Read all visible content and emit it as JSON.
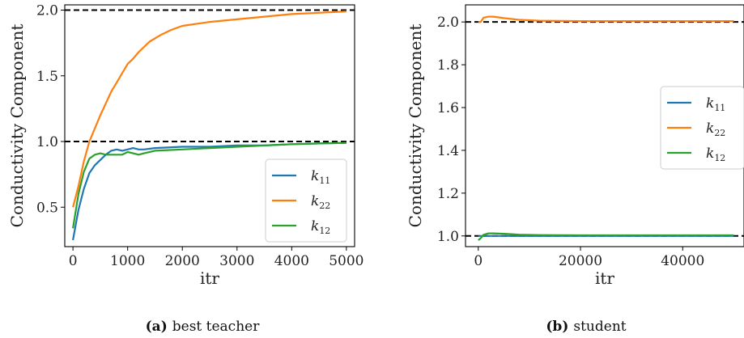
{
  "colors": {
    "k11": "#1f77b4",
    "k22": "#ff7f0e",
    "k12": "#2ca02c",
    "ref": "#000000"
  },
  "chart_data": [
    {
      "type": "line",
      "caption_tag": "(a)",
      "caption": "best teacher",
      "xlabel": "itr",
      "ylabel": "Conductivity Component",
      "xlim": [
        -150,
        5150
      ],
      "ylim": [
        0.2,
        2.04
      ],
      "xticks": [
        0,
        1000,
        2000,
        3000,
        4000,
        5000
      ],
      "xtick_labels": [
        "0",
        "1000",
        "2000",
        "3000",
        "4000",
        "5000"
      ],
      "yticks": [
        0.5,
        1.0,
        1.5,
        2.0
      ],
      "ytick_labels": [
        "0.5",
        "1.0",
        "1.5",
        "2.0"
      ],
      "reference_lines": [
        1.0,
        2.0
      ],
      "legend": {
        "position": "lower-right",
        "entries": [
          {
            "sym": "k",
            "sub": "11"
          },
          {
            "sym": "k",
            "sub": "22"
          },
          {
            "sym": "k",
            "sub": "12"
          }
        ]
      },
      "series": [
        {
          "name": "k11",
          "x": [
            0,
            100,
            200,
            300,
            400,
            500,
            600,
            700,
            800,
            900,
            1000,
            1100,
            1200,
            1300,
            1500,
            2000,
            2500,
            3000,
            3500,
            4000,
            4500,
            5000
          ],
          "y": [
            0.25,
            0.48,
            0.64,
            0.76,
            0.82,
            0.86,
            0.9,
            0.93,
            0.94,
            0.93,
            0.94,
            0.95,
            0.94,
            0.94,
            0.95,
            0.96,
            0.96,
            0.97,
            0.97,
            0.98,
            0.985,
            0.99
          ]
        },
        {
          "name": "k22",
          "x": [
            0,
            100,
            200,
            300,
            400,
            500,
            600,
            700,
            800,
            900,
            1000,
            1100,
            1200,
            1400,
            1600,
            1800,
            2000,
            2500,
            3000,
            3500,
            4000,
            4500,
            5000
          ],
          "y": [
            0.5,
            0.66,
            0.85,
            1.0,
            1.1,
            1.2,
            1.29,
            1.38,
            1.45,
            1.52,
            1.59,
            1.63,
            1.68,
            1.76,
            1.81,
            1.85,
            1.88,
            1.91,
            1.93,
            1.95,
            1.97,
            1.98,
            1.99
          ]
        },
        {
          "name": "k12",
          "x": [
            0,
            100,
            200,
            300,
            400,
            500,
            600,
            700,
            800,
            900,
            1000,
            1100,
            1200,
            1300,
            1500,
            2000,
            2500,
            3000,
            3500,
            4000,
            4500,
            5000
          ],
          "y": [
            0.34,
            0.6,
            0.77,
            0.87,
            0.9,
            0.91,
            0.9,
            0.9,
            0.9,
            0.9,
            0.92,
            0.91,
            0.9,
            0.91,
            0.93,
            0.94,
            0.95,
            0.96,
            0.97,
            0.98,
            0.985,
            0.99
          ]
        }
      ]
    },
    {
      "type": "line",
      "caption_tag": "(b)",
      "caption": "student",
      "xlabel": "itr",
      "ylabel": "Conductivity Component",
      "xlim": [
        -2500,
        52000
      ],
      "ylim": [
        0.95,
        2.08
      ],
      "xticks": [
        0,
        20000,
        40000
      ],
      "xtick_labels": [
        "0",
        "20000",
        "40000"
      ],
      "yticks": [
        1.0,
        1.2,
        1.4,
        1.6,
        1.8,
        2.0
      ],
      "ytick_labels": [
        "1.0",
        "1.2",
        "1.4",
        "1.6",
        "1.8",
        "2.0"
      ],
      "reference_lines": [
        1.0,
        2.0
      ],
      "legend": {
        "position": "center-right",
        "entries": [
          {
            "sym": "k",
            "sub": "11"
          },
          {
            "sym": "k",
            "sub": "22"
          },
          {
            "sym": "k",
            "sub": "12"
          }
        ]
      },
      "series": [
        {
          "name": "k11",
          "x": [
            0,
            500,
            1000,
            2000,
            3000,
            5000,
            10000,
            20000,
            30000,
            40000,
            50000
          ],
          "y": [
            1.0,
            1.0,
            1.0,
            1.0,
            1.0,
            1.0,
            1.0,
            1.0,
            1.0,
            1.0,
            1.0
          ]
        },
        {
          "name": "k22",
          "x": [
            0,
            500,
            1000,
            2000,
            3000,
            5000,
            8000,
            12000,
            20000,
            30000,
            40000,
            50000
          ],
          "y": [
            2.0,
            2.0,
            2.02,
            2.025,
            2.025,
            2.018,
            2.01,
            2.006,
            2.004,
            2.004,
            2.004,
            2.004
          ]
        },
        {
          "name": "k12",
          "x": [
            0,
            500,
            1000,
            2000,
            3000,
            5000,
            8000,
            12000,
            20000,
            30000,
            40000,
            50000
          ],
          "y": [
            0.98,
            0.99,
            1.005,
            1.012,
            1.012,
            1.01,
            1.006,
            1.004,
            1.003,
            1.003,
            1.003,
            1.003
          ]
        }
      ]
    }
  ]
}
